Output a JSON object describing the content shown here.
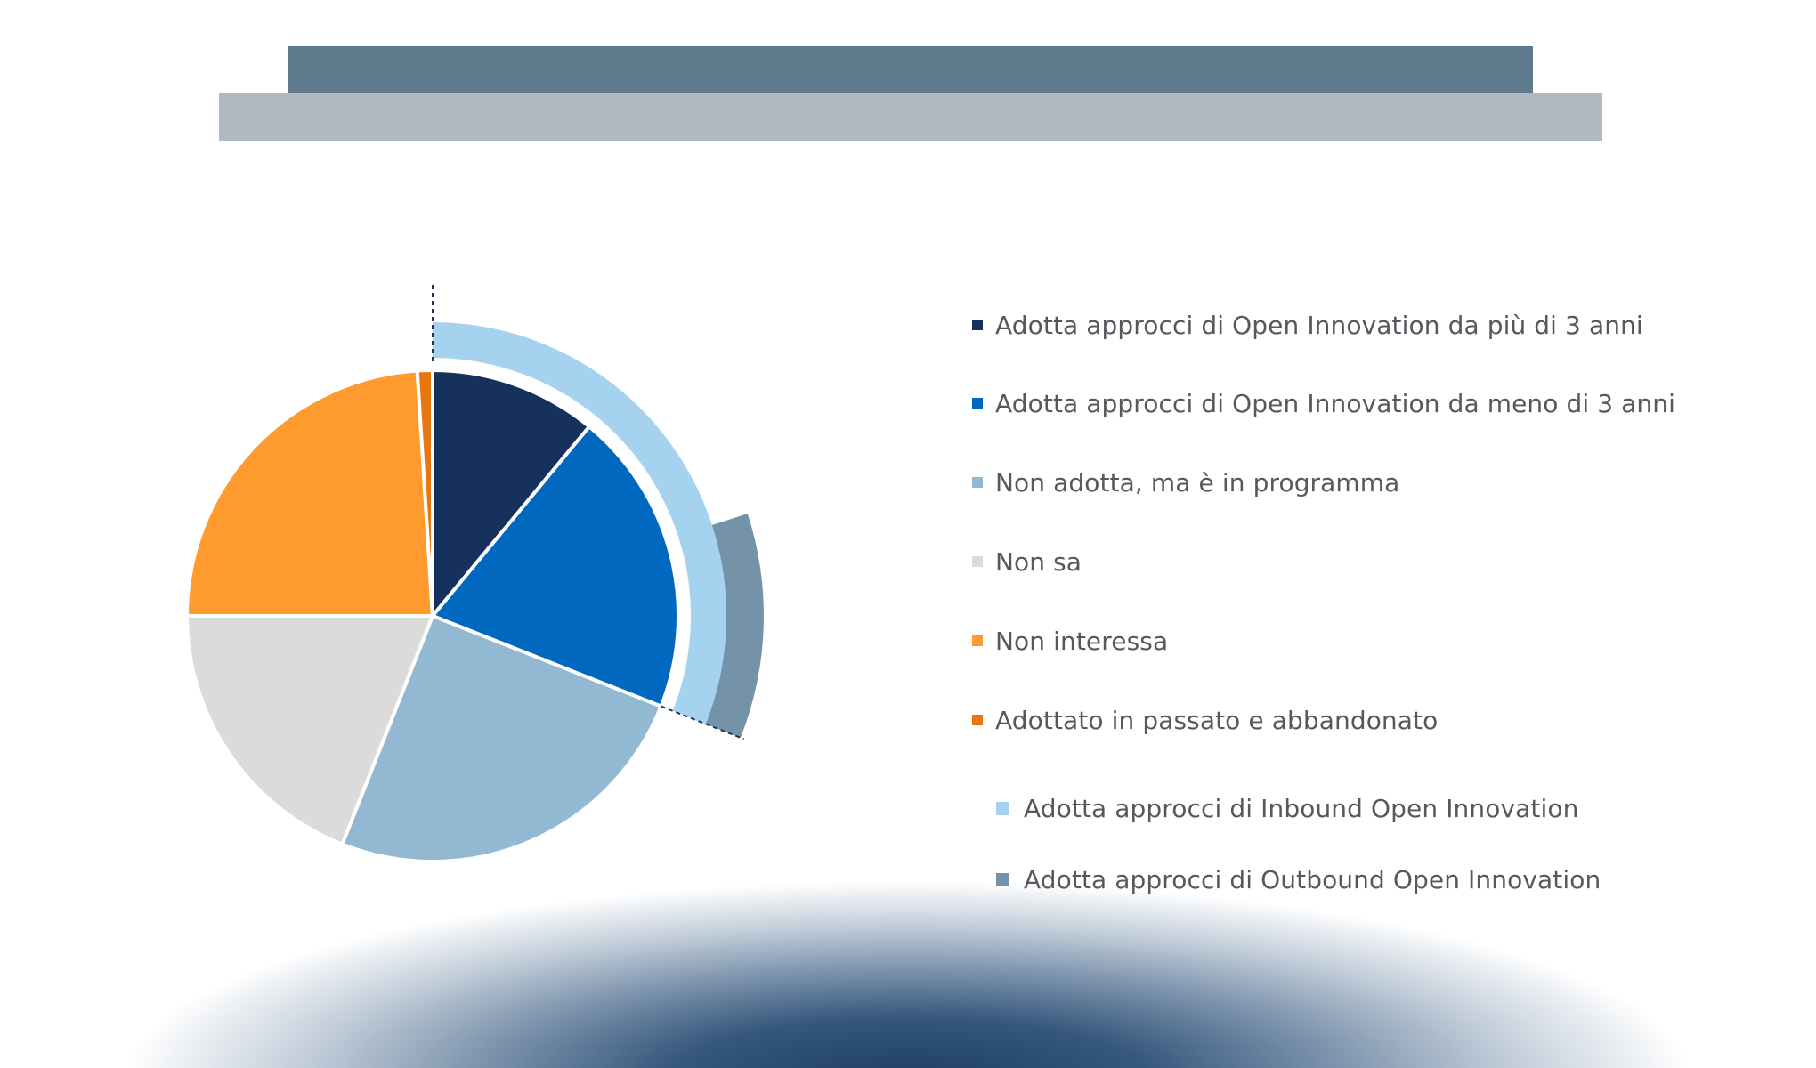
{
  "header": {
    "band_top_color": "#5e7a8c",
    "band_bottom_color": "#b0b8c1"
  },
  "chart_data": {
    "type": "pie",
    "title": "",
    "inner_pie": {
      "slices": [
        {
          "label": "Adotta approcci di Open Innovation da più di 3 anni",
          "value": 11,
          "color": "#16325c"
        },
        {
          "label": "Adotta approcci di Open Innovation da meno di 3 anni",
          "value": 20,
          "color": "#0068be"
        },
        {
          "label": "Non adotta, ma è in programma",
          "value": 25,
          "color": "#92b8d2"
        },
        {
          "label": "Non sa",
          "value": 19,
          "color": "#dbdbdb"
        },
        {
          "label": "Non interessa",
          "value": 24,
          "color": "#ff9a2e"
        },
        {
          "label": "Adottato in passato e abbandonato",
          "value": 1,
          "color": "#e8770f"
        }
      ]
    },
    "outer_arcs": [
      {
        "label": "Adotta approcci di Inbound Open Innovation",
        "start_value": 0,
        "end_value": 31,
        "color": "#a5d3ef"
      },
      {
        "label": "Adotta approcci di Outbound Open Innovation",
        "start_value": 20,
        "end_value": 31,
        "color": "#7593a8"
      }
    ],
    "legend_placement": "right"
  }
}
